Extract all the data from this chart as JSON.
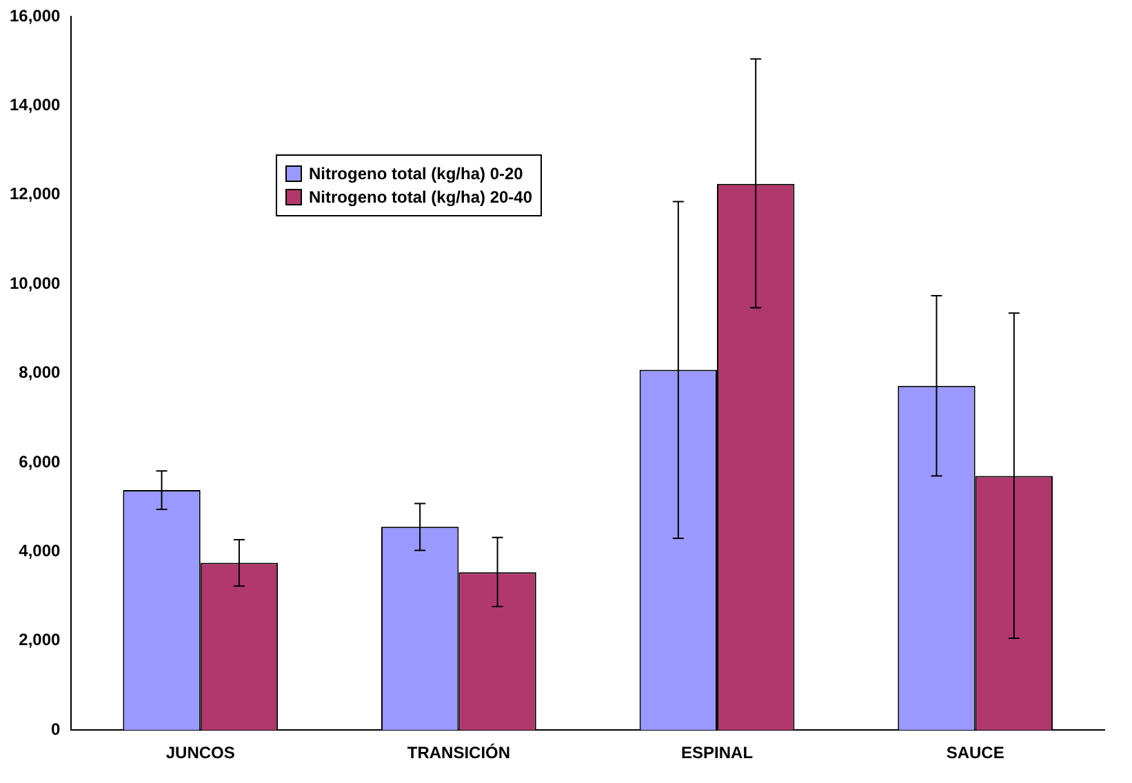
{
  "chart_data": {
    "type": "bar",
    "categories": [
      "JUNCOS",
      "TRANSICIÓN",
      "ESPINAL",
      "SAUCE"
    ],
    "series": [
      {
        "name": "Nitrogeno total (kg/ha) 0-20",
        "color": "#9999ff",
        "values": [
          5380,
          4560,
          8080,
          7720
        ],
        "errors": [
          [
            4950,
            5810
          ],
          [
            4030,
            5080
          ],
          [
            4300,
            11850
          ],
          [
            5700,
            9740
          ]
        ]
      },
      {
        "name": "Nitrogeno total (kg/ha) 20-40",
        "color": "#b0386c",
        "values": [
          3750,
          3540,
          12250,
          5700
        ],
        "errors": [
          [
            3230,
            4270
          ],
          [
            2770,
            4320
          ],
          [
            9470,
            15050
          ],
          [
            2060,
            9350
          ]
        ]
      }
    ],
    "ylim": [
      0,
      16000
    ],
    "yticks": [
      0,
      {
        "value": 2000,
        "label": "2,000"
      },
      {
        "value": 4000,
        "label": "4,000"
      },
      {
        "value": 6000,
        "label": "6,000"
      },
      {
        "value": 8000,
        "label": "8,000"
      },
      {
        "value": 10000,
        "label": "10,000"
      },
      {
        "value": 12000,
        "label": "12,000"
      },
      {
        "value": 14000,
        "label": "14,000"
      },
      {
        "value": 16000,
        "label": "16,000"
      }
    ],
    "grid": false,
    "legend": "top left"
  }
}
